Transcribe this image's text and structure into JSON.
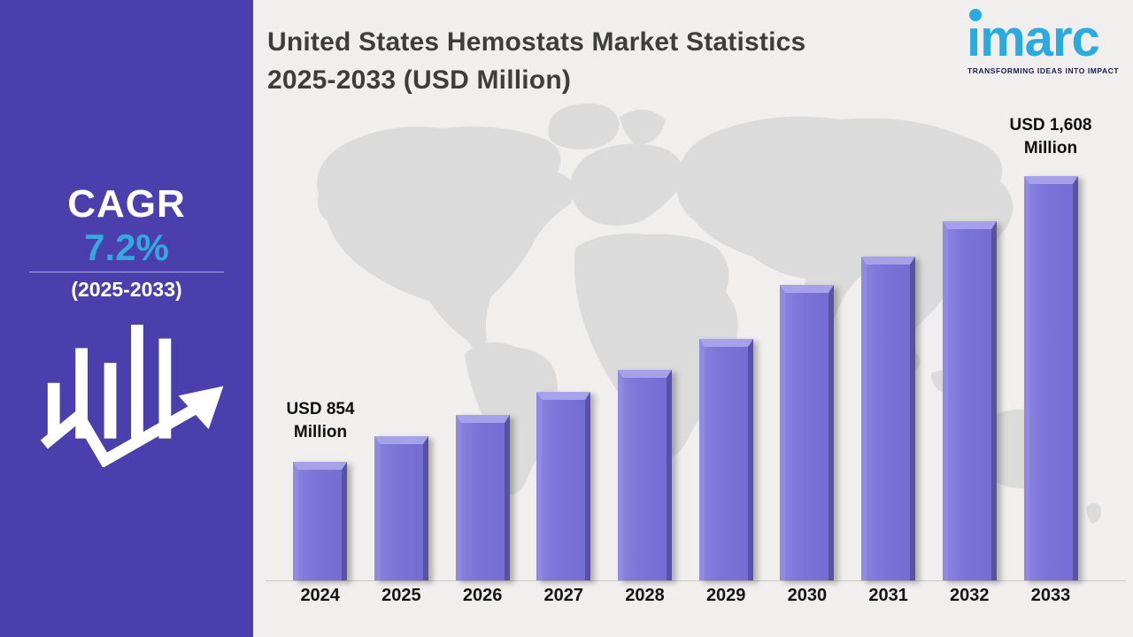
{
  "sidebar": {
    "cagr_label": "CAGR",
    "cagr_value": "7.2%",
    "period": "(2025-2033)",
    "bg_color": "#4a3fad",
    "accent_color": "#35a8e0",
    "icon": "bar-chart-growth-arrow-icon"
  },
  "header": {
    "title_line1": "United States Hemostats Market Statistics",
    "title_line2": "2025-2033 (USD Million)"
  },
  "logo": {
    "wordmark": "imarc",
    "tagline": "TRANSFORMING IDEAS INTO IMPACT",
    "brand_color": "#29aae1"
  },
  "chart_data": {
    "type": "bar",
    "title": "United States Hemostats Market Statistics 2025-2033 (USD Million)",
    "unit": "USD Million",
    "categories": [
      "2024",
      "2025",
      "2026",
      "2027",
      "2028",
      "2029",
      "2030",
      "2031",
      "2032",
      "2033"
    ],
    "values": [
      854,
      922,
      978,
      1038,
      1097,
      1178,
      1321,
      1396,
      1489,
      1608
    ],
    "data_labels": {
      "first": [
        "USD 854",
        "Million"
      ],
      "last": [
        "USD 1,608",
        "Million"
      ]
    },
    "xlabel": "",
    "ylabel": "",
    "ylim": [
      547,
      1650
    ],
    "grid": false,
    "legend": false,
    "bar_color": "#7d76d9",
    "background": "world-map-silhouette",
    "map_color": "#dbdbdb",
    "panel_color": "#f0efee"
  }
}
